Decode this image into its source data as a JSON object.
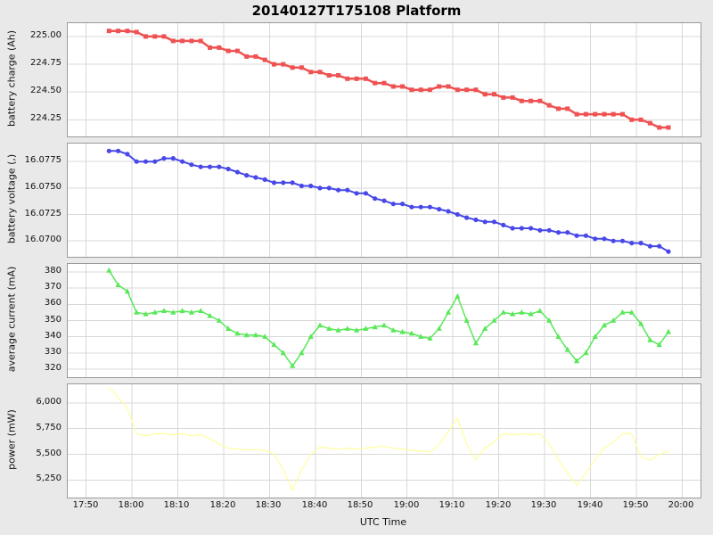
{
  "title": "20140127T175108 Platform",
  "x_axis": {
    "label": "UTC Time",
    "range": [
      -4,
      134
    ],
    "unit": "minutes after 17:50 UTC",
    "tick_values": [
      0,
      10,
      20,
      30,
      40,
      50,
      60,
      70,
      80,
      90,
      100,
      110,
      120,
      130
    ],
    "tick_labels": [
      "17:50",
      "18:00",
      "18:10",
      "18:20",
      "18:30",
      "18:40",
      "18:50",
      "19:00",
      "19:10",
      "19:20",
      "19:30",
      "19:40",
      "19:50",
      "20:00"
    ]
  },
  "x_minutes_after_1750": [
    5,
    7,
    9,
    11,
    13,
    15,
    17,
    19,
    21,
    23,
    25,
    27,
    29,
    31,
    33,
    35,
    37,
    39,
    41,
    43,
    45,
    47,
    49,
    51,
    53,
    55,
    57,
    59,
    61,
    63,
    65,
    67,
    69,
    71,
    73,
    75,
    77,
    79,
    81,
    83,
    85,
    87,
    89,
    91,
    93,
    95,
    97,
    99,
    101,
    103,
    105,
    107,
    109,
    111,
    113,
    115,
    117,
    119,
    121,
    123,
    125,
    127
  ],
  "chart_data": [
    {
      "type": "line",
      "name": "battery charge",
      "ylabel": "battery charge (Ah)",
      "color": "#ee5252",
      "marker": "square",
      "line_width": 2.5,
      "ylim": [
        224.1,
        225.12
      ],
      "ytick_values": [
        224.25,
        224.5,
        224.75,
        225.0
      ],
      "ytick_labels": [
        "224.25",
        "224.50",
        "224.75",
        "225.00"
      ],
      "values": [
        225.05,
        225.05,
        225.05,
        225.04,
        225.0,
        225.0,
        225.0,
        224.96,
        224.96,
        224.96,
        224.96,
        224.9,
        224.9,
        224.87,
        224.87,
        224.82,
        224.82,
        224.79,
        224.75,
        224.75,
        224.72,
        224.72,
        224.68,
        224.68,
        224.65,
        224.65,
        224.62,
        224.62,
        224.62,
        224.58,
        224.58,
        224.55,
        224.55,
        224.52,
        224.52,
        224.52,
        224.55,
        224.55,
        224.52,
        224.52,
        224.52,
        224.48,
        224.48,
        224.45,
        224.45,
        224.42,
        224.42,
        224.42,
        224.38,
        224.35,
        224.35,
        224.3,
        224.3,
        224.3,
        224.3,
        224.3,
        224.3,
        224.25,
        224.25,
        224.22,
        224.18,
        224.18
      ]
    },
    {
      "type": "line",
      "name": "battery voltage",
      "ylabel": "battery voltage (,)",
      "color": "#4848e8",
      "marker": "circle",
      "line_width": 2,
      "ylim": [
        16.0685,
        16.0792
      ],
      "ytick_values": [
        16.07,
        16.0725,
        16.075,
        16.0775
      ],
      "ytick_labels": [
        "16.0700",
        "16.0725",
        "16.0750",
        "16.0775"
      ],
      "values": [
        16.0785,
        16.0785,
        16.0782,
        16.0775,
        16.0775,
        16.0775,
        16.0778,
        16.0778,
        16.0775,
        16.0772,
        16.077,
        16.077,
        16.077,
        16.0768,
        16.0765,
        16.0762,
        16.076,
        16.0758,
        16.0755,
        16.0755,
        16.0755,
        16.0752,
        16.0752,
        16.075,
        16.075,
        16.0748,
        16.0748,
        16.0745,
        16.0745,
        16.074,
        16.0738,
        16.0735,
        16.0735,
        16.0732,
        16.0732,
        16.0732,
        16.073,
        16.0728,
        16.0725,
        16.0722,
        16.072,
        16.0718,
        16.0718,
        16.0715,
        16.0712,
        16.0712,
        16.0712,
        16.071,
        16.071,
        16.0708,
        16.0708,
        16.0705,
        16.0705,
        16.0702,
        16.0702,
        16.07,
        16.07,
        16.0698,
        16.0698,
        16.0695,
        16.0695,
        16.069
      ]
    },
    {
      "type": "line",
      "name": "average current",
      "ylabel": "average current (mA)",
      "color": "#58e858",
      "marker": "triangle",
      "line_width": 1.5,
      "ylim": [
        315,
        385
      ],
      "ytick_values": [
        320,
        330,
        340,
        350,
        360,
        370,
        380
      ],
      "ytick_labels": [
        "320",
        "330",
        "340",
        "350",
        "360",
        "370",
        "380"
      ],
      "values": [
        381,
        372,
        368,
        355,
        354,
        355,
        356,
        355,
        356,
        355,
        356,
        353,
        350,
        345,
        342,
        341,
        341,
        340,
        335,
        330,
        322,
        330,
        340,
        347,
        345,
        344,
        345,
        344,
        345,
        346,
        347,
        344,
        343,
        342,
        340,
        339,
        345,
        355,
        365,
        350,
        336,
        345,
        350,
        355,
        354,
        355,
        354,
        356,
        350,
        340,
        332,
        325,
        330,
        340,
        347,
        350,
        355,
        355,
        348,
        338,
        335,
        343
      ]
    },
    {
      "type": "line",
      "name": "power",
      "ylabel": "power (mW)",
      "color": "#ffff9e",
      "marker": "none",
      "line_width": 1.2,
      "ylim": [
        5080,
        6180
      ],
      "ytick_values": [
        5250,
        5500,
        5750,
        6000
      ],
      "ytick_labels": [
        "5,250",
        "5,500",
        "5,750",
        "6,000"
      ],
      "values": [
        6150,
        6050,
        5950,
        5700,
        5680,
        5700,
        5700,
        5690,
        5700,
        5680,
        5690,
        5650,
        5600,
        5560,
        5550,
        5545,
        5545,
        5540,
        5500,
        5350,
        5150,
        5350,
        5500,
        5570,
        5560,
        5550,
        5560,
        5550,
        5560,
        5570,
        5580,
        5560,
        5550,
        5540,
        5530,
        5520,
        5600,
        5720,
        5850,
        5600,
        5450,
        5560,
        5620,
        5700,
        5690,
        5700,
        5690,
        5700,
        5600,
        5450,
        5320,
        5200,
        5320,
        5450,
        5560,
        5620,
        5700,
        5700,
        5480,
        5440,
        5500,
        5530
      ]
    }
  ]
}
